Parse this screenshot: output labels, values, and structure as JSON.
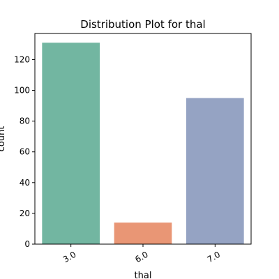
{
  "chart_data": {
    "type": "bar",
    "title": "Distribution Plot for thal",
    "xlabel": "thal",
    "ylabel": "count",
    "categories": [
      "3.0",
      "6.0",
      "7.0"
    ],
    "values": [
      131,
      14,
      95
    ],
    "ylim": [
      0,
      137
    ],
    "yticks": [
      0,
      20,
      40,
      60,
      80,
      100,
      120
    ],
    "colors": [
      "#72b6a1",
      "#e99675",
      "#95a3c3"
    ],
    "grid": false,
    "legend": "none"
  }
}
